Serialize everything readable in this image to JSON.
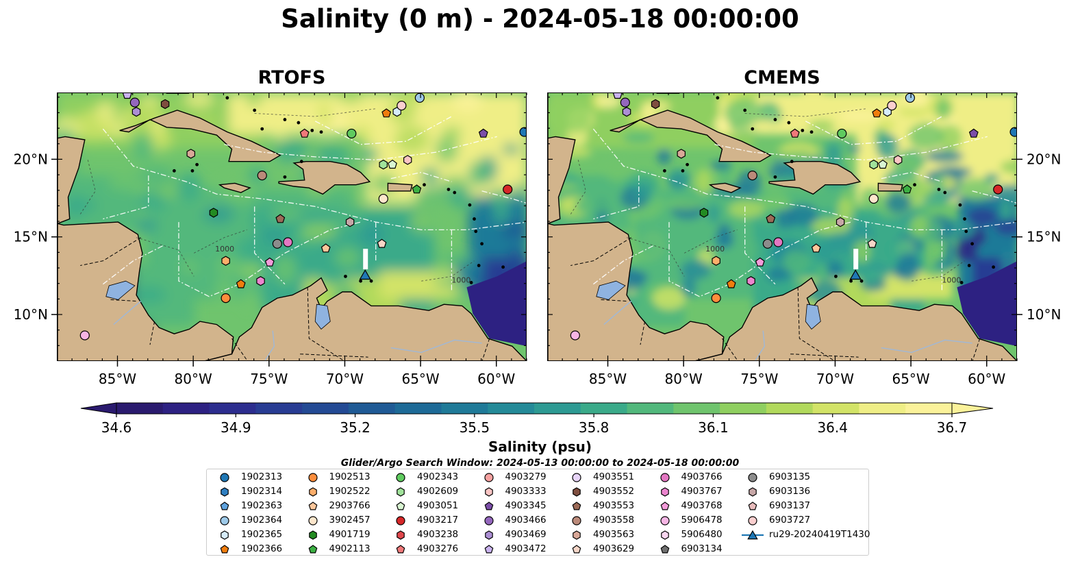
{
  "title": "Salinity (0 m) - 2024-05-18 00:00:00",
  "panels": [
    {
      "title": "RTOFS"
    },
    {
      "title": "CMEMS"
    }
  ],
  "axes": {
    "lat_ticks": [
      "20°N",
      "15°N",
      "10°N"
    ],
    "lon_ticks": [
      "85°W",
      "80°W",
      "75°W",
      "70°W",
      "65°W",
      "60°W"
    ]
  },
  "colorbar": {
    "label": "Salinity (psu)",
    "min": 34.6,
    "max": 36.7,
    "ticks": [
      "34.6",
      "34.9",
      "35.2",
      "35.5",
      "35.8",
      "36.1",
      "36.4",
      "36.7"
    ],
    "colors": [
      "#2a1a6e",
      "#2d2182",
      "#2c2d8e",
      "#283c93",
      "#234a94",
      "#1f5a95",
      "#1d6a97",
      "#1f7a98",
      "#248a98",
      "#2d9a93",
      "#3aaa89",
      "#52b87c",
      "#6fc46d",
      "#8fcf60",
      "#b1d95c",
      "#d2e367",
      "#efee86",
      "#fbf29a"
    ]
  },
  "search_window": "Glider/Argo Search Window: 2024-05-13 00:00:00 to 2024-05-18 00:00:00",
  "contour_labels": [
    "1000",
    "1000"
  ],
  "legend": {
    "items": [
      {
        "id": "1902313",
        "shape": "circle",
        "color": "#1f77b4"
      },
      {
        "id": "1902314",
        "shape": "hexagon",
        "color": "#2f7fc1"
      },
      {
        "id": "1902363",
        "shape": "pentagon",
        "color": "#5fa2dd"
      },
      {
        "id": "1902364",
        "shape": "circle",
        "color": "#9ecae9"
      },
      {
        "id": "1902365",
        "shape": "hexagon",
        "color": "#d6ecfa"
      },
      {
        "id": "1902366",
        "shape": "pentagon",
        "color": "#f07d0e"
      },
      {
        "id": "1902513",
        "shape": "circle",
        "color": "#fd8d3c"
      },
      {
        "id": "1902522",
        "shape": "hexagon",
        "color": "#fdae6b"
      },
      {
        "id": "2903766",
        "shape": "pentagon",
        "color": "#fdc79b"
      },
      {
        "id": "3902457",
        "shape": "circle",
        "color": "#fde6cc"
      },
      {
        "id": "4901719",
        "shape": "hexagon",
        "color": "#238b22"
      },
      {
        "id": "4902113",
        "shape": "pentagon",
        "color": "#3cb043"
      },
      {
        "id": "4902343",
        "shape": "circle",
        "color": "#5fcb5f"
      },
      {
        "id": "4902609",
        "shape": "hexagon",
        "color": "#a1e39b"
      },
      {
        "id": "4903051",
        "shape": "pentagon",
        "color": "#d9f5d2"
      },
      {
        "id": "4903217",
        "shape": "circle",
        "color": "#d62728"
      },
      {
        "id": "4903238",
        "shape": "hexagon",
        "color": "#e0474c"
      },
      {
        "id": "4903276",
        "shape": "pentagon",
        "color": "#f0797a"
      },
      {
        "id": "4903279",
        "shape": "circle",
        "color": "#f7a1a0"
      },
      {
        "id": "4903333",
        "shape": "hexagon",
        "color": "#fbc5c4"
      },
      {
        "id": "4903345",
        "shape": "pentagon",
        "color": "#7b4ea8"
      },
      {
        "id": "4903466",
        "shape": "circle",
        "color": "#9467bd"
      },
      {
        "id": "4903469",
        "shape": "hexagon",
        "color": "#ac8fd4"
      },
      {
        "id": "4903472",
        "shape": "pentagon",
        "color": "#c9b2ee"
      },
      {
        "id": "4903551",
        "shape": "circle",
        "color": "#e7d4f8"
      },
      {
        "id": "4903552",
        "shape": "hexagon",
        "color": "#7f4e3f"
      },
      {
        "id": "4903553",
        "shape": "pentagon",
        "color": "#9c6a57"
      },
      {
        "id": "4903558",
        "shape": "circle",
        "color": "#bb8a7a"
      },
      {
        "id": "4903563",
        "shape": "hexagon",
        "color": "#d9a898"
      },
      {
        "id": "4903629",
        "shape": "pentagon",
        "color": "#f7d6c8"
      },
      {
        "id": "4903766",
        "shape": "circle",
        "color": "#e377c2"
      },
      {
        "id": "4903767",
        "shape": "hexagon",
        "color": "#ec85cf"
      },
      {
        "id": "4903768",
        "shape": "pentagon",
        "color": "#f39bd9"
      },
      {
        "id": "5906478",
        "shape": "circle",
        "color": "#f6b5e4"
      },
      {
        "id": "5906480",
        "shape": "hexagon",
        "color": "#fad6f0"
      },
      {
        "id": "6903134",
        "shape": "pentagon",
        "color": "#6f6f6f"
      },
      {
        "id": "6903135",
        "shape": "circle",
        "color": "#8c8c8c"
      },
      {
        "id": "6903136",
        "shape": "hexagon",
        "color": "#c7a7a7"
      },
      {
        "id": "6903137",
        "shape": "pentagon",
        "color": "#e8bcbc"
      },
      {
        "id": "6903727",
        "shape": "circle",
        "color": "#fbcfcf"
      },
      {
        "id": "ru29-20240419T1430",
        "shape": "triangle-line",
        "color": "#1f77b4"
      }
    ]
  },
  "floats": [
    {
      "id": "1902313",
      "lon": -58.2,
      "lat": 21.8
    },
    {
      "id": "1902364",
      "lon": -65.1,
      "lat": 24.0
    },
    {
      "id": "1902365",
      "lon": -66.6,
      "lat": 23.1
    },
    {
      "id": "1902366",
      "lon": -67.3,
      "lat": 23.0
    },
    {
      "id": "6903727",
      "lon": -66.3,
      "lat": 23.5
    },
    {
      "id": "4903345",
      "lon": -60.9,
      "lat": 21.7
    },
    {
      "id": "4903276",
      "lon": -72.7,
      "lat": 21.7
    },
    {
      "id": "4902343",
      "lon": -69.6,
      "lat": 21.7
    },
    {
      "id": "4902609",
      "lon": -67.5,
      "lat": 19.7
    },
    {
      "id": "4903051",
      "lon": -66.9,
      "lat": 19.7
    },
    {
      "id": "4903333",
      "lon": -65.9,
      "lat": 20.0
    },
    {
      "id": "4902113",
      "lon": -65.3,
      "lat": 18.1
    },
    {
      "id": "4903217",
      "lon": -59.3,
      "lat": 18.1
    },
    {
      "id": "3902457",
      "lon": -67.5,
      "lat": 17.5
    },
    {
      "id": "4903558",
      "lon": -75.5,
      "lat": 19.0
    },
    {
      "id": "4903563",
      "lon": -80.2,
      "lat": 20.4
    },
    {
      "id": "4903552",
      "lon": -81.9,
      "lat": 23.6
    },
    {
      "id": "4903466",
      "lon": -83.9,
      "lat": 23.7
    },
    {
      "id": "4903472",
      "lon": -84.4,
      "lat": 24.2
    },
    {
      "id": "4903469",
      "lon": -83.8,
      "lat": 23.1
    },
    {
      "id": "4901719",
      "lon": -78.7,
      "lat": 16.6
    },
    {
      "id": "4903553",
      "lon": -74.3,
      "lat": 16.2
    },
    {
      "id": "6903136",
      "lon": -69.7,
      "lat": 16.0
    },
    {
      "id": "6903135",
      "lon": -74.5,
      "lat": 14.6
    },
    {
      "id": "4903766",
      "lon": -73.8,
      "lat": 14.7
    },
    {
      "id": "2903766",
      "lon": -71.3,
      "lat": 14.3
    },
    {
      "id": "4903629",
      "lon": -67.6,
      "lat": 14.6
    },
    {
      "id": "4903768",
      "lon": -75.0,
      "lat": 13.4
    },
    {
      "id": "4903767",
      "lon": -75.6,
      "lat": 12.2
    },
    {
      "id": "1902522",
      "lon": -77.9,
      "lat": 13.5
    },
    {
      "id": "1902366",
      "lon": -76.9,
      "lat": 12.0
    },
    {
      "id": "1902513",
      "lon": -77.9,
      "lat": 11.1
    },
    {
      "id": "5906480",
      "lon": -86.8,
      "lat": 24.6
    },
    {
      "id": "5906478",
      "lon": -87.2,
      "lat": 8.7
    }
  ],
  "glider": {
    "id": "ru29-20240419T1430",
    "lon": -68.7,
    "lat": 12.6
  }
}
